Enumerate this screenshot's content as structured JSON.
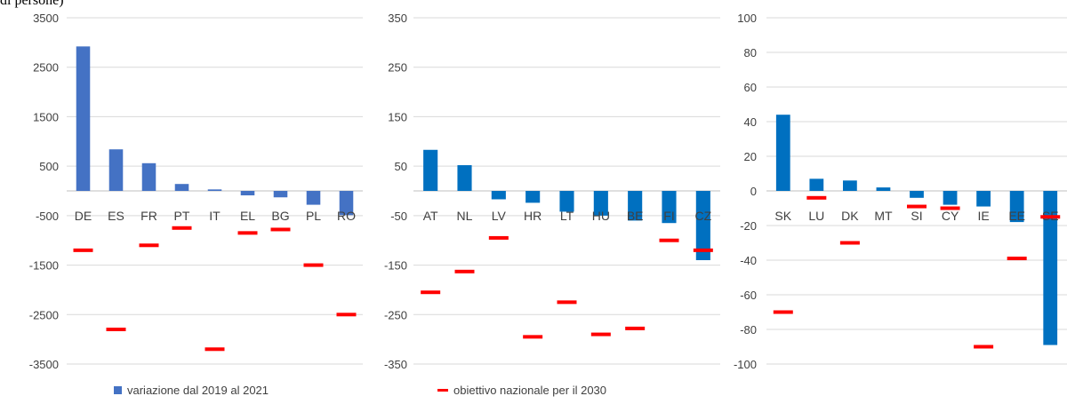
{
  "caption": "di persone)",
  "colors": {
    "bar_left": "#4472C4",
    "bar_other": "#0070C0",
    "target": "#FF0000",
    "grid": "#D9D9D9",
    "axis": "#BFBFBF",
    "text": "#404040"
  },
  "legend": {
    "bar_label": "variazione dal 2019 al 2021",
    "target_label": "obiettivo nazionale per il 2030"
  },
  "chart_data": [
    {
      "type": "bar",
      "ylim": [
        -3500,
        3500
      ],
      "yticks": [
        3500,
        2500,
        1500,
        500,
        -500,
        -1500,
        -2500,
        -3500
      ],
      "categories": [
        "DE",
        "ES",
        "FR",
        "PT",
        "IT",
        "EL",
        "BG",
        "PL",
        "RO"
      ],
      "series": [
        {
          "name": "variazione dal 2019 al 2021",
          "values": [
            2920,
            840,
            560,
            140,
            30,
            -90,
            -130,
            -280,
            -490
          ]
        },
        {
          "name": "obiettivo nazionale per il 2030",
          "values": [
            -1200,
            -2800,
            -1100,
            -750,
            -3200,
            -850,
            -780,
            -1500,
            -2500
          ]
        }
      ]
    },
    {
      "type": "bar",
      "ylim": [
        -350,
        350
      ],
      "yticks": [
        350,
        250,
        150,
        50,
        -50,
        -150,
        -250,
        -350
      ],
      "categories": [
        "AT",
        "NL",
        "LV",
        "HR",
        "LT",
        "HU",
        "BE",
        "FI",
        "CZ"
      ],
      "series": [
        {
          "name": "variazione dal 2019 al 2021",
          "values": [
            83,
            52,
            -17,
            -24,
            -42,
            -50,
            -60,
            -65,
            -140
          ]
        },
        {
          "name": "obiettivo nazionale per il 2030",
          "values": [
            -205,
            -163,
            -95,
            -295,
            -225,
            -290,
            -278,
            -100,
            -120
          ]
        }
      ]
    },
    {
      "type": "bar",
      "ylim": [
        -100,
        100
      ],
      "yticks": [
        100,
        80,
        60,
        40,
        20,
        0,
        -20,
        -40,
        -60,
        -80,
        -100
      ],
      "categories": [
        "SK",
        "LU",
        "DK",
        "MT",
        "SI",
        "CY",
        "IE",
        "EE",
        "SE"
      ],
      "series": [
        {
          "name": "variazione dal 2019 al 2021",
          "values": [
            44,
            7,
            6,
            2,
            -4,
            -8,
            -9,
            -18,
            -89
          ]
        },
        {
          "name": "obiettivo nazionale per il 2030",
          "values": [
            -70,
            -4,
            -30,
            null,
            -9,
            -10,
            -90,
            -39,
            -15
          ]
        }
      ]
    }
  ]
}
